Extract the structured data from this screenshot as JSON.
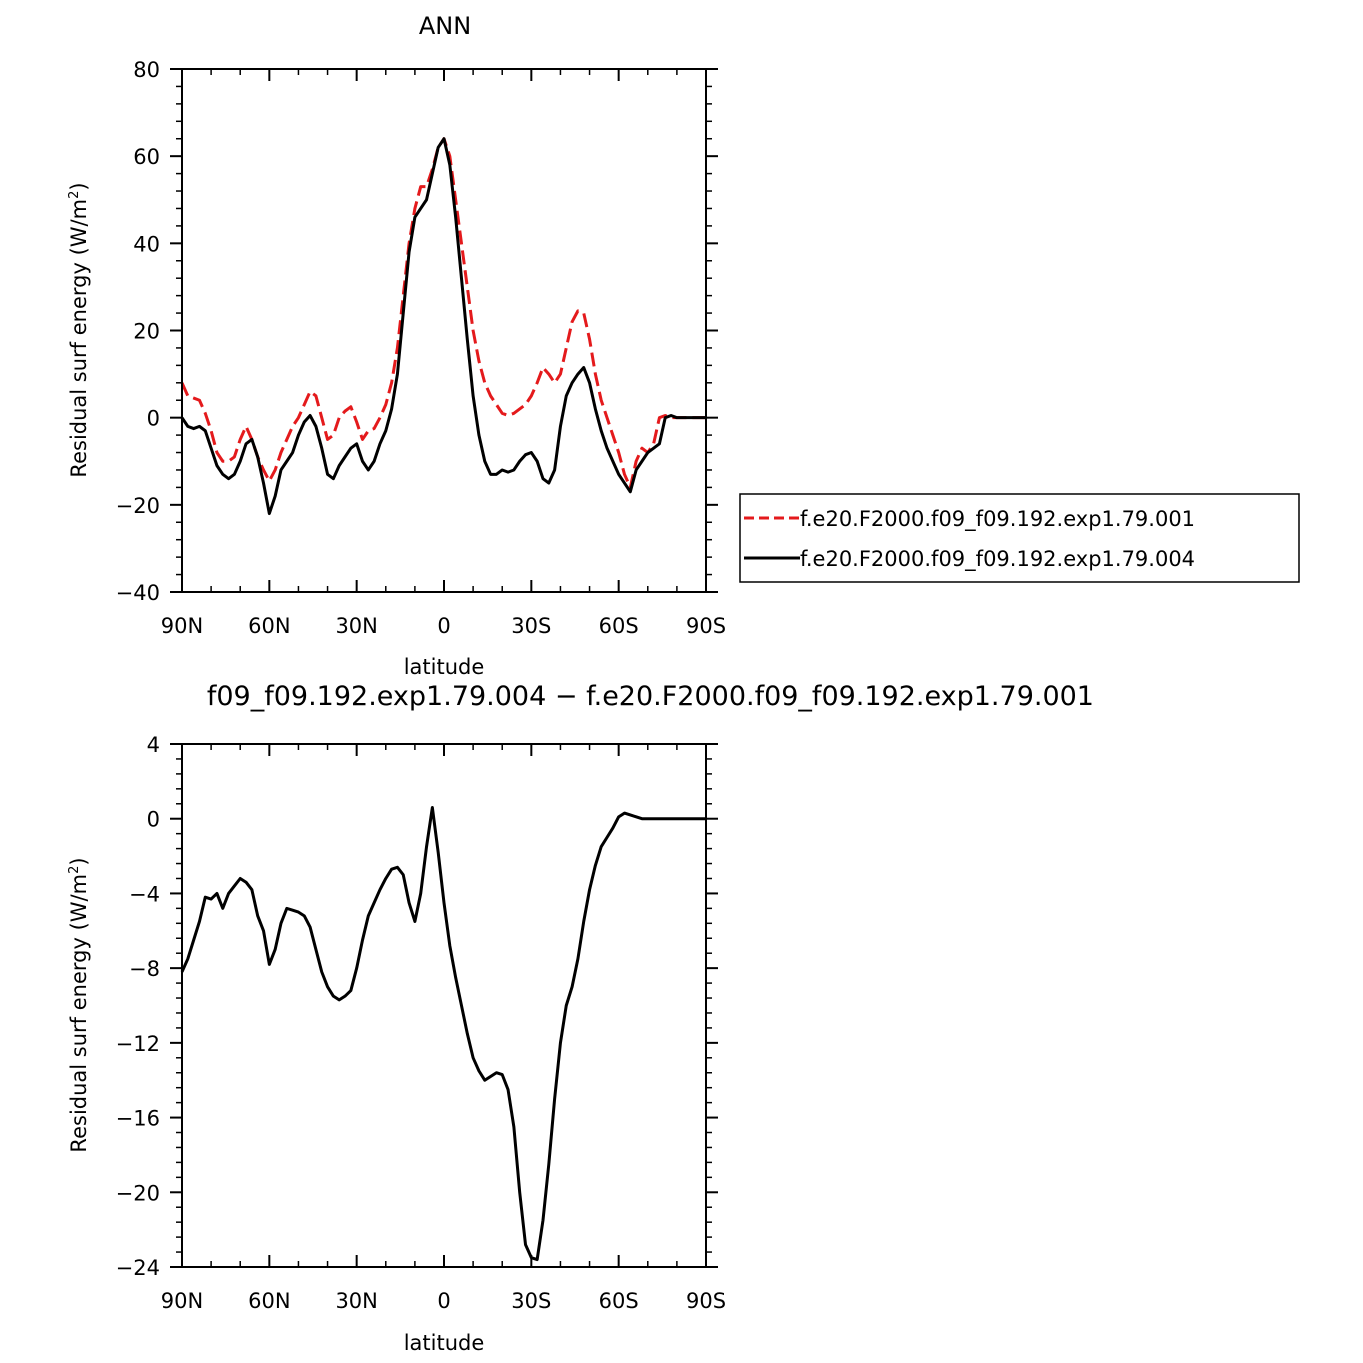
{
  "chart_data": [
    {
      "type": "line",
      "title": "ANN",
      "xlabel": "latitude",
      "ylabel": "Residual surf energy (W/m²)",
      "ylabel_parts": {
        "main": "Residual surf energy (W/m",
        "sup": "2",
        "end": ")"
      },
      "xlim": [
        90,
        -90
      ],
      "ylim": [
        -40,
        80
      ],
      "xticks": [
        90,
        60,
        30,
        0,
        -30,
        -60,
        -90
      ],
      "xticklabels": [
        "90N",
        "60N",
        "30N",
        "0",
        "30S",
        "60S",
        "90S"
      ],
      "yticks": [
        -40,
        -20,
        0,
        20,
        40,
        60,
        80
      ],
      "yticklabels": [
        "−40",
        "−20",
        "0",
        "20",
        "40",
        "60",
        "80"
      ],
      "legend": "right",
      "series": [
        {
          "name": "f.e20.F2000.f09_f09.192.exp1.79.001",
          "color": "#e41a1c",
          "dash": "dashed",
          "x": [
            90,
            88,
            86,
            84,
            82,
            80,
            78,
            76,
            74,
            72,
            70,
            68,
            66,
            64,
            62,
            60,
            58,
            56,
            54,
            52,
            50,
            48,
            46,
            44,
            42,
            40,
            38,
            36,
            34,
            32,
            30,
            28,
            26,
            24,
            22,
            20,
            18,
            16,
            14,
            12,
            10,
            8,
            6,
            4,
            2,
            0,
            -2,
            -4,
            -6,
            -8,
            -10,
            -12,
            -14,
            -16,
            -18,
            -20,
            -22,
            -24,
            -26,
            -28,
            -30,
            -32,
            -34,
            -36,
            -38,
            -40,
            -42,
            -44,
            -46,
            -48,
            -50,
            -52,
            -54,
            -56,
            -58,
            -60,
            -62,
            -64,
            -66,
            -68,
            -70,
            -72,
            -74,
            -76,
            -78,
            -80,
            -82,
            -84,
            -86,
            -88,
            -90
          ],
          "y": [
            8,
            5,
            4.5,
            4,
            1,
            -3,
            -8,
            -10,
            -10,
            -9,
            -5,
            -2,
            -5,
            -9,
            -12,
            -14.5,
            -12,
            -8,
            -5,
            -2,
            0,
            3,
            6,
            5,
            0,
            -5,
            -4,
            0,
            1.5,
            2.5,
            -1,
            -5,
            -3,
            -2.5,
            0,
            3,
            8,
            16,
            28,
            40,
            48,
            53,
            53,
            57,
            62,
            64,
            60,
            50,
            40,
            30,
            20,
            13,
            8,
            5,
            3,
            1,
            0.5,
            1,
            2,
            3,
            5,
            8,
            11.5,
            10,
            8,
            10,
            16,
            22,
            24.5,
            24,
            18,
            10,
            4,
            0,
            -4,
            -8,
            -13,
            -16,
            -10,
            -7,
            -8,
            -6,
            0,
            0.5,
            0,
            0,
            0,
            0,
            0,
            0,
            0
          ]
        },
        {
          "name": "f.e20.F2000.f09_f09.192.exp1.79.004",
          "color": "#000000",
          "dash": "solid",
          "x": [
            90,
            88,
            86,
            84,
            82,
            80,
            78,
            76,
            74,
            72,
            70,
            68,
            66,
            64,
            62,
            60,
            58,
            56,
            54,
            52,
            50,
            48,
            46,
            44,
            42,
            40,
            38,
            36,
            34,
            32,
            30,
            28,
            26,
            24,
            22,
            20,
            18,
            16,
            14,
            12,
            10,
            8,
            6,
            4,
            2,
            0,
            -2,
            -4,
            -6,
            -8,
            -10,
            -12,
            -14,
            -16,
            -18,
            -20,
            -22,
            -24,
            -26,
            -28,
            -30,
            -32,
            -34,
            -36,
            -38,
            -40,
            -42,
            -44,
            -46,
            -48,
            -50,
            -52,
            -54,
            -56,
            -58,
            -60,
            -62,
            -64,
            -66,
            -68,
            -70,
            -72,
            -74,
            -76,
            -78,
            -80,
            -82,
            -84,
            -86,
            -88,
            -90
          ],
          "y": [
            0,
            -2,
            -2.5,
            -2,
            -3,
            -7,
            -11,
            -13,
            -14,
            -13,
            -10,
            -6,
            -5,
            -9,
            -15,
            -22,
            -18,
            -12,
            -10,
            -8,
            -4,
            -1,
            0.5,
            -2,
            -7,
            -13,
            -14,
            -11,
            -9,
            -7,
            -6,
            -10,
            -12,
            -10,
            -6,
            -3,
            2,
            10,
            24,
            38,
            46,
            48,
            50,
            56,
            62,
            64,
            58,
            46,
            32,
            18,
            5,
            -4,
            -10,
            -13,
            -13,
            -12,
            -12.5,
            -12,
            -10,
            -8.5,
            -8,
            -10,
            -14,
            -15,
            -12,
            -2,
            5,
            8,
            10,
            11.5,
            8,
            2,
            -3,
            -7,
            -10,
            -13,
            -15,
            -17,
            -12,
            -10,
            -8,
            -7,
            -6,
            0,
            0.5,
            0,
            0,
            0,
            0,
            0,
            0
          ]
        }
      ]
    },
    {
      "type": "line",
      "title": "f09_f09.192.exp1.79.004 − f.e20.F2000.f09_f09.192.exp1.79.001",
      "xlabel": "latitude",
      "ylabel": "Residual surf energy (W/m²)",
      "ylabel_parts": {
        "main": "Residual surf energy (W/m",
        "sup": "2",
        "end": ")"
      },
      "xlim": [
        90,
        -90
      ],
      "ylim": [
        -24,
        4
      ],
      "xticks": [
        90,
        60,
        30,
        0,
        -30,
        -60,
        -90
      ],
      "xticklabels": [
        "90N",
        "60N",
        "30N",
        "0",
        "30S",
        "60S",
        "90S"
      ],
      "yticks": [
        -24,
        -20,
        -16,
        -12,
        -8,
        -4,
        0,
        4
      ],
      "yticklabels": [
        "−24",
        "−20",
        "−16",
        "−12",
        "−8",
        "−4",
        "0",
        "4"
      ],
      "series": [
        {
          "color": "#000000",
          "dash": "solid",
          "x": [
            90,
            88,
            86,
            84,
            82,
            80,
            78,
            76,
            74,
            72,
            70,
            68,
            66,
            64,
            62,
            60,
            58,
            56,
            54,
            52,
            50,
            48,
            46,
            44,
            42,
            40,
            38,
            36,
            34,
            32,
            30,
            28,
            26,
            24,
            22,
            20,
            18,
            16,
            14,
            12,
            10,
            8,
            6,
            4,
            2,
            0,
            -2,
            -4,
            -6,
            -8,
            -10,
            -12,
            -14,
            -16,
            -18,
            -20,
            -22,
            -24,
            -26,
            -28,
            -30,
            -32,
            -34,
            -36,
            -38,
            -40,
            -42,
            -44,
            -46,
            -48,
            -50,
            -52,
            -54,
            -56,
            -58,
            -60,
            -62,
            -64,
            -66,
            -68,
            -70,
            -72,
            -74,
            -76,
            -78,
            -80,
            -82,
            -84,
            -86,
            -88,
            -90
          ],
          "y": [
            -8.2,
            -7.5,
            -6.5,
            -5.5,
            -4.2,
            -4.3,
            -4,
            -4.8,
            -4.0,
            -3.6,
            -3.2,
            -3.4,
            -3.8,
            -5.2,
            -6.0,
            -7.8,
            -7.0,
            -5.6,
            -4.8,
            -4.9,
            -5.0,
            -5.2,
            -5.8,
            -7.0,
            -8.2,
            -9.0,
            -9.5,
            -9.7,
            -9.5,
            -9.2,
            -8.0,
            -6.5,
            -5.2,
            -4.5,
            -3.8,
            -3.2,
            -2.7,
            -2.6,
            -3.0,
            -4.5,
            -5.5,
            -4.0,
            -1.5,
            0.6,
            -1.8,
            -4.5,
            -6.8,
            -8.5,
            -10.0,
            -11.5,
            -12.8,
            -13.5,
            -14.0,
            -13.8,
            -13.6,
            -13.7,
            -14.5,
            -16.5,
            -20.0,
            -22.8,
            -23.5,
            -23.6,
            -21.5,
            -18.5,
            -15.0,
            -12.0,
            -10.0,
            -9.0,
            -7.5,
            -5.5,
            -3.8,
            -2.5,
            -1.5,
            -1.0,
            -0.5,
            0.1,
            0.3,
            0.2,
            0.1,
            0.0,
            0,
            0,
            0,
            0,
            0,
            0,
            0,
            0,
            0,
            0,
            0
          ]
        }
      ]
    }
  ]
}
